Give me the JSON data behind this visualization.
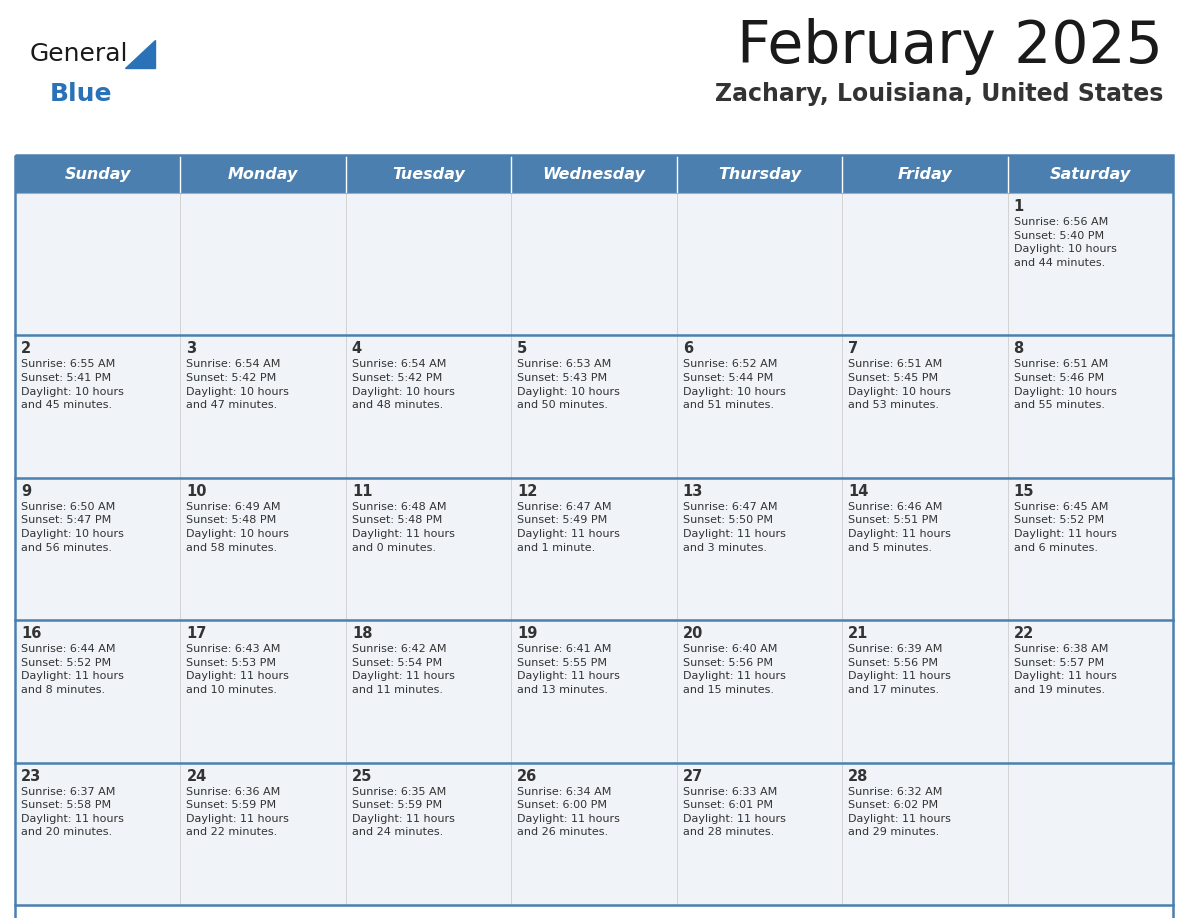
{
  "title": "February 2025",
  "subtitle": "Zachary, Louisiana, United States",
  "header_bg": "#4a7faf",
  "header_text_color": "#ffffff",
  "cell_bg": "#f0f4f8",
  "border_color": "#336699",
  "separator_color": "#4a7faf",
  "text_color": "#333333",
  "day_headers": [
    "Sunday",
    "Monday",
    "Tuesday",
    "Wednesday",
    "Thursday",
    "Friday",
    "Saturday"
  ],
  "logo_general_color": "#1a1a1a",
  "logo_blue_color": "#2a72b8",
  "logo_triangle_color": "#2a72b8",
  "title_color": "#1a1a1a",
  "subtitle_color": "#333333",
  "weeks": [
    [
      {
        "day": "",
        "info": ""
      },
      {
        "day": "",
        "info": ""
      },
      {
        "day": "",
        "info": ""
      },
      {
        "day": "",
        "info": ""
      },
      {
        "day": "",
        "info": ""
      },
      {
        "day": "",
        "info": ""
      },
      {
        "day": "1",
        "info": "Sunrise: 6:56 AM\nSunset: 5:40 PM\nDaylight: 10 hours\nand 44 minutes."
      }
    ],
    [
      {
        "day": "2",
        "info": "Sunrise: 6:55 AM\nSunset: 5:41 PM\nDaylight: 10 hours\nand 45 minutes."
      },
      {
        "day": "3",
        "info": "Sunrise: 6:54 AM\nSunset: 5:42 PM\nDaylight: 10 hours\nand 47 minutes."
      },
      {
        "day": "4",
        "info": "Sunrise: 6:54 AM\nSunset: 5:42 PM\nDaylight: 10 hours\nand 48 minutes."
      },
      {
        "day": "5",
        "info": "Sunrise: 6:53 AM\nSunset: 5:43 PM\nDaylight: 10 hours\nand 50 minutes."
      },
      {
        "day": "6",
        "info": "Sunrise: 6:52 AM\nSunset: 5:44 PM\nDaylight: 10 hours\nand 51 minutes."
      },
      {
        "day": "7",
        "info": "Sunrise: 6:51 AM\nSunset: 5:45 PM\nDaylight: 10 hours\nand 53 minutes."
      },
      {
        "day": "8",
        "info": "Sunrise: 6:51 AM\nSunset: 5:46 PM\nDaylight: 10 hours\nand 55 minutes."
      }
    ],
    [
      {
        "day": "9",
        "info": "Sunrise: 6:50 AM\nSunset: 5:47 PM\nDaylight: 10 hours\nand 56 minutes."
      },
      {
        "day": "10",
        "info": "Sunrise: 6:49 AM\nSunset: 5:48 PM\nDaylight: 10 hours\nand 58 minutes."
      },
      {
        "day": "11",
        "info": "Sunrise: 6:48 AM\nSunset: 5:48 PM\nDaylight: 11 hours\nand 0 minutes."
      },
      {
        "day": "12",
        "info": "Sunrise: 6:47 AM\nSunset: 5:49 PM\nDaylight: 11 hours\nand 1 minute."
      },
      {
        "day": "13",
        "info": "Sunrise: 6:47 AM\nSunset: 5:50 PM\nDaylight: 11 hours\nand 3 minutes."
      },
      {
        "day": "14",
        "info": "Sunrise: 6:46 AM\nSunset: 5:51 PM\nDaylight: 11 hours\nand 5 minutes."
      },
      {
        "day": "15",
        "info": "Sunrise: 6:45 AM\nSunset: 5:52 PM\nDaylight: 11 hours\nand 6 minutes."
      }
    ],
    [
      {
        "day": "16",
        "info": "Sunrise: 6:44 AM\nSunset: 5:52 PM\nDaylight: 11 hours\nand 8 minutes."
      },
      {
        "day": "17",
        "info": "Sunrise: 6:43 AM\nSunset: 5:53 PM\nDaylight: 11 hours\nand 10 minutes."
      },
      {
        "day": "18",
        "info": "Sunrise: 6:42 AM\nSunset: 5:54 PM\nDaylight: 11 hours\nand 11 minutes."
      },
      {
        "day": "19",
        "info": "Sunrise: 6:41 AM\nSunset: 5:55 PM\nDaylight: 11 hours\nand 13 minutes."
      },
      {
        "day": "20",
        "info": "Sunrise: 6:40 AM\nSunset: 5:56 PM\nDaylight: 11 hours\nand 15 minutes."
      },
      {
        "day": "21",
        "info": "Sunrise: 6:39 AM\nSunset: 5:56 PM\nDaylight: 11 hours\nand 17 minutes."
      },
      {
        "day": "22",
        "info": "Sunrise: 6:38 AM\nSunset: 5:57 PM\nDaylight: 11 hours\nand 19 minutes."
      }
    ],
    [
      {
        "day": "23",
        "info": "Sunrise: 6:37 AM\nSunset: 5:58 PM\nDaylight: 11 hours\nand 20 minutes."
      },
      {
        "day": "24",
        "info": "Sunrise: 6:36 AM\nSunset: 5:59 PM\nDaylight: 11 hours\nand 22 minutes."
      },
      {
        "day": "25",
        "info": "Sunrise: 6:35 AM\nSunset: 5:59 PM\nDaylight: 11 hours\nand 24 minutes."
      },
      {
        "day": "26",
        "info": "Sunrise: 6:34 AM\nSunset: 6:00 PM\nDaylight: 11 hours\nand 26 minutes."
      },
      {
        "day": "27",
        "info": "Sunrise: 6:33 AM\nSunset: 6:01 PM\nDaylight: 11 hours\nand 28 minutes."
      },
      {
        "day": "28",
        "info": "Sunrise: 6:32 AM\nSunset: 6:02 PM\nDaylight: 11 hours\nand 29 minutes."
      },
      {
        "day": "",
        "info": ""
      }
    ]
  ]
}
